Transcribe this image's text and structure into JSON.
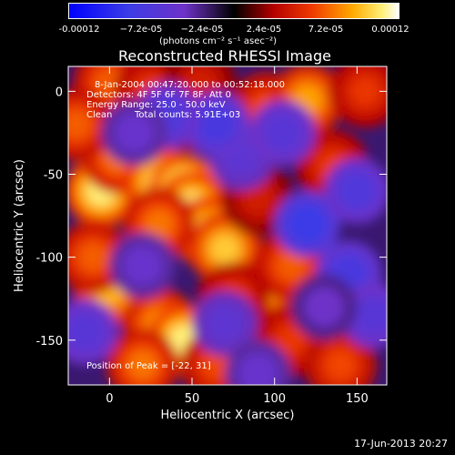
{
  "colorbar": {
    "ticks": [
      "-0.00012",
      "−7.2e-05",
      "−2.4e-05",
      "2.4e-05",
      "7.2e-05",
      "0.00012"
    ],
    "units": "(photons cm⁻² s⁻¹ asec⁻²)"
  },
  "header": {
    "title": "Reconstructed RHESSI Image"
  },
  "info": {
    "time_range": "8-Jan-2004 00:47:20.000 to 00:52:18.000",
    "detectors": "Detectors: 4F 5F 6F 7F 8F, Att 0",
    "energy": "Energy Range: 25.0 - 50.0 keV",
    "clean": "Clean",
    "counts": "Total counts: 5.91E+03",
    "peak": "Position of Peak = [-22, 31]"
  },
  "footer": {
    "timestamp": "17-Jun-2013 20:27"
  },
  "chart_data": {
    "type": "heatmap",
    "title": "Reconstructed RHESSI Image",
    "xlabel": "Heliocentric X (arcsec)",
    "ylabel": "Heliocentric Y (arcsec)",
    "xlim": [
      -25,
      168
    ],
    "ylim": [
      -177,
      15
    ],
    "xticks": [
      "0",
      "50",
      "100",
      "150"
    ],
    "xtick_values": [
      0,
      50,
      100,
      150
    ],
    "yticks": [
      "0",
      "-50",
      "-100",
      "-150"
    ],
    "ytick_values": [
      0,
      -50,
      -100,
      -150
    ],
    "colorbar_range": [
      -0.00012,
      0.00012
    ],
    "blobs": [
      {
        "x": -5,
        "y": -60,
        "v": 0.9
      },
      {
        "x": 5,
        "y": -40,
        "v": 0.6
      },
      {
        "x": 30,
        "y": -55,
        "v": 0.85
      },
      {
        "x": 45,
        "y": -60,
        "v": 1.0
      },
      {
        "x": 50,
        "y": -70,
        "v": 0.9
      },
      {
        "x": 60,
        "y": -85,
        "v": 0.85
      },
      {
        "x": 70,
        "y": -95,
        "v": 0.8
      },
      {
        "x": 30,
        "y": -80,
        "v": 0.6
      },
      {
        "x": 95,
        "y": -120,
        "v": 0.7
      },
      {
        "x": 110,
        "y": -105,
        "v": 0.55
      },
      {
        "x": 75,
        "y": -125,
        "v": 0.45
      },
      {
        "x": 0,
        "y": -120,
        "v": 0.75
      },
      {
        "x": -10,
        "y": -100,
        "v": 0.55
      },
      {
        "x": 30,
        "y": -140,
        "v": 0.65
      },
      {
        "x": 45,
        "y": -150,
        "v": 0.9
      },
      {
        "x": 20,
        "y": -165,
        "v": 0.6
      },
      {
        "x": 65,
        "y": -165,
        "v": 0.5
      },
      {
        "x": 110,
        "y": -150,
        "v": 0.45
      },
      {
        "x": 140,
        "y": -165,
        "v": 0.5
      },
      {
        "x": 95,
        "y": -10,
        "v": 0.5
      },
      {
        "x": 120,
        "y": -5,
        "v": 0.7
      },
      {
        "x": 155,
        "y": 0,
        "v": 0.45
      },
      {
        "x": 135,
        "y": -45,
        "v": 0.45
      },
      {
        "x": 0,
        "y": 5,
        "v": 0.55
      },
      {
        "x": 25,
        "y": 0,
        "v": 0.45
      },
      {
        "x": 50,
        "y": -15,
        "v": 0.4
      },
      {
        "x": 55,
        "y": 5,
        "v": 0.35
      },
      {
        "x": -20,
        "y": -20,
        "v": 0.55
      },
      {
        "x": 90,
        "y": -65,
        "v": 0.35
      },
      {
        "x": 80,
        "y": -40,
        "v": -0.4
      },
      {
        "x": 65,
        "y": -20,
        "v": -0.55
      },
      {
        "x": 105,
        "y": -25,
        "v": -0.45
      },
      {
        "x": 120,
        "y": -80,
        "v": -0.65
      },
      {
        "x": 145,
        "y": -110,
        "v": -0.55
      },
      {
        "x": 150,
        "y": -60,
        "v": -0.5
      },
      {
        "x": 160,
        "y": -135,
        "v": -0.45
      },
      {
        "x": 35,
        "y": -15,
        "v": -0.5
      },
      {
        "x": 15,
        "y": -25,
        "v": -0.35
      },
      {
        "x": -15,
        "y": -145,
        "v": -0.45
      },
      {
        "x": 70,
        "y": -140,
        "v": -0.4
      },
      {
        "x": 20,
        "y": -105,
        "v": -0.35
      },
      {
        "x": 90,
        "y": -170,
        "v": -0.35
      },
      {
        "x": 130,
        "y": -130,
        "v": -0.3
      }
    ]
  }
}
